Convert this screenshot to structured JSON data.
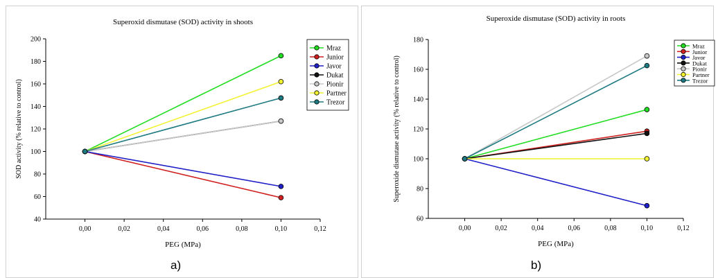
{
  "panel_labels": [
    "a)",
    "b)"
  ],
  "legend_series": [
    "Mraz",
    "Junior",
    "Javor",
    "Dukat",
    "Pionir",
    "Partner",
    "Trezor"
  ],
  "colors": {
    "Mraz": "#22dd22",
    "Junior": "#d02020",
    "Javor": "#2020c8",
    "Dukat": "#111111",
    "Pionir": "#c8c8c8",
    "Partner": "#f2f230",
    "Trezor": "#1f7b82"
  },
  "chart_data": [
    {
      "type": "line",
      "title": "Superoxid dismutase (SOD) activity in shoots",
      "xlabel": "PEG (MPa)",
      "ylabel": "SOD activity (% relative to control)",
      "xlim": [
        -0.02,
        0.12
      ],
      "ylim": [
        40,
        200
      ],
      "xticks": [
        "0,00",
        "0,02",
        "0,04",
        "0,06",
        "0,08",
        "0,10",
        "0,12"
      ],
      "xtick_values": [
        0,
        0.02,
        0.04,
        0.06,
        0.08,
        0.1,
        0.12
      ],
      "yticks": [
        40,
        60,
        80,
        100,
        120,
        140,
        160,
        180,
        200
      ],
      "grid": false,
      "legend": "right",
      "x": [
        0,
        0.1
      ],
      "series": [
        {
          "name": "Mraz",
          "values": [
            100,
            185
          ]
        },
        {
          "name": "Junior",
          "values": [
            100,
            59
          ]
        },
        {
          "name": "Javor",
          "values": [
            100,
            69
          ]
        },
        {
          "name": "Dukat",
          "values": [
            100,
            127
          ]
        },
        {
          "name": "Pionir",
          "values": [
            100,
            127
          ]
        },
        {
          "name": "Partner",
          "values": [
            100,
            162
          ]
        },
        {
          "name": "Trezor",
          "values": [
            100,
            147.5
          ]
        }
      ]
    },
    {
      "type": "line",
      "title": "Superoxide dismutase (SOD) activity in roots",
      "xlabel": "PEG (MPa)",
      "ylabel": "Superoxide dismutase activity (% relative to control)",
      "xlim": [
        -0.02,
        0.12
      ],
      "ylim": [
        60,
        180
      ],
      "xticks": [
        "0,00",
        "0,02",
        "0,04",
        "0,06",
        "0,08",
        "0,10",
        "0,12"
      ],
      "xtick_values": [
        0,
        0.02,
        0.04,
        0.06,
        0.08,
        0.1,
        0.12
      ],
      "yticks": [
        60,
        80,
        100,
        120,
        140,
        160,
        180
      ],
      "grid": false,
      "legend": "right",
      "x": [
        0,
        0.1
      ],
      "series": [
        {
          "name": "Mraz",
          "values": [
            100,
            133
          ]
        },
        {
          "name": "Junior",
          "values": [
            100,
            118.5
          ]
        },
        {
          "name": "Javor",
          "values": [
            100,
            68.5
          ]
        },
        {
          "name": "Dukat",
          "values": [
            100,
            117
          ]
        },
        {
          "name": "Pionir",
          "values": [
            100,
            169
          ]
        },
        {
          "name": "Partner",
          "values": [
            100,
            100
          ]
        },
        {
          "name": "Trezor",
          "values": [
            100,
            162.5
          ]
        }
      ]
    }
  ]
}
